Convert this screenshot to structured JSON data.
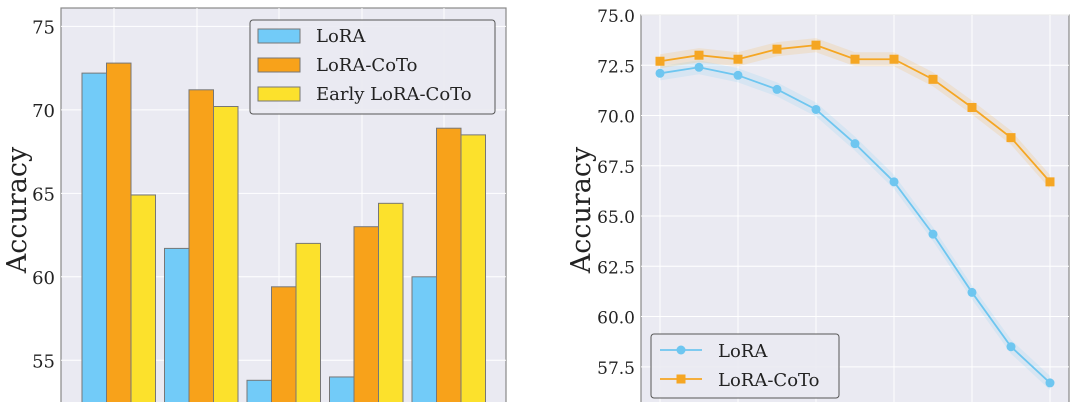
{
  "chart_data": [
    {
      "type": "bar",
      "ylabel": "Accuracy",
      "ylim": [
        52.5,
        76.1
      ],
      "yticks": [
        55,
        60,
        65,
        70,
        75
      ],
      "grid": true,
      "legend_position": "top-right",
      "categories": [
        "",
        "",
        "",
        "",
        ""
      ],
      "series": [
        {
          "name": "LoRA",
          "color": "#72CBF8",
          "values": [
            72.2,
            61.7,
            53.8,
            54.0,
            60.0
          ]
        },
        {
          "name": "LoRA-CoTo",
          "color": "#F8A21A",
          "values": [
            72.8,
            71.2,
            59.4,
            63.0,
            68.9
          ]
        },
        {
          "name": "Early LoRA-CoTo",
          "color": "#FCE12C",
          "values": [
            64.9,
            70.2,
            62.0,
            64.4,
            68.5
          ]
        }
      ]
    },
    {
      "type": "line",
      "ylabel": "Accuracy",
      "ylim": [
        55.75,
        75.0
      ],
      "yticks": [
        "57.5",
        "60.0",
        "62.5",
        "65.0",
        "67.5",
        "70.0",
        "72.5",
        "75.0"
      ],
      "grid": true,
      "legend_position": "bottom-left",
      "x": [
        0,
        1,
        2,
        3,
        4,
        5,
        6,
        7,
        8,
        9,
        10
      ],
      "series": [
        {
          "name": "LoRA",
          "color": "#6EC6F0",
          "marker": "circle",
          "values": [
            72.1,
            72.4,
            72.0,
            71.3,
            70.3,
            68.6,
            66.7,
            64.1,
            61.2,
            58.5,
            56.7
          ]
        },
        {
          "name": "LoRA-CoTo",
          "color": "#F5A623",
          "marker": "square",
          "values": [
            72.7,
            73.0,
            72.8,
            73.3,
            73.5,
            72.8,
            72.8,
            71.8,
            70.4,
            68.9,
            66.7
          ]
        }
      ]
    }
  ]
}
